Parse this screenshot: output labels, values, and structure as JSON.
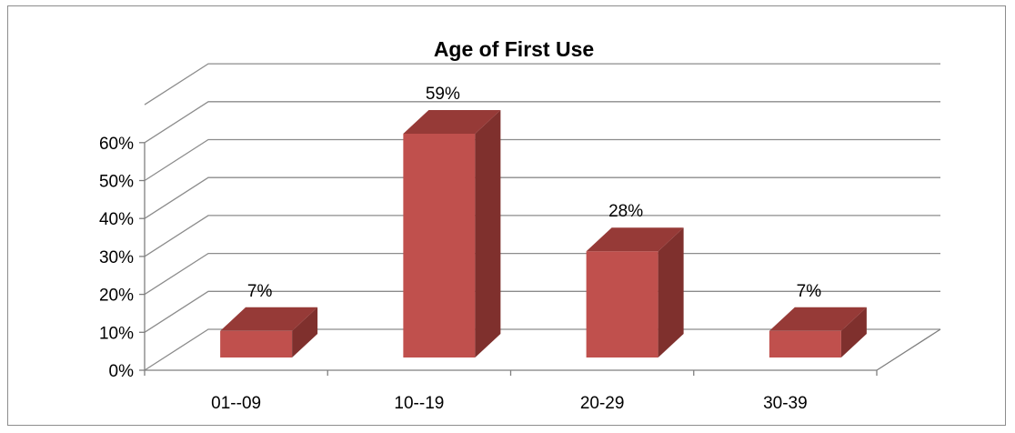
{
  "chart_data": {
    "type": "bar",
    "title": "Age of First Use",
    "categories": [
      "01--09",
      "10--19",
      "20-29",
      "30-39"
    ],
    "values": [
      7,
      59,
      28,
      7
    ],
    "data_labels": [
      "7%",
      "59%",
      "28%",
      "7%"
    ],
    "ylim": [
      0,
      60
    ],
    "ytick_labels": [
      "0%",
      "10%",
      "20%",
      "30%",
      "40%",
      "50%",
      "60%"
    ],
    "xlabel": "",
    "ylabel": "",
    "grid": true,
    "legend": "none",
    "three_d": true,
    "colors": {
      "bar_front": "#c0504d",
      "bar_side": "#7f302d",
      "bar_top": "#963a37",
      "grid": "#8c8c8c"
    }
  }
}
